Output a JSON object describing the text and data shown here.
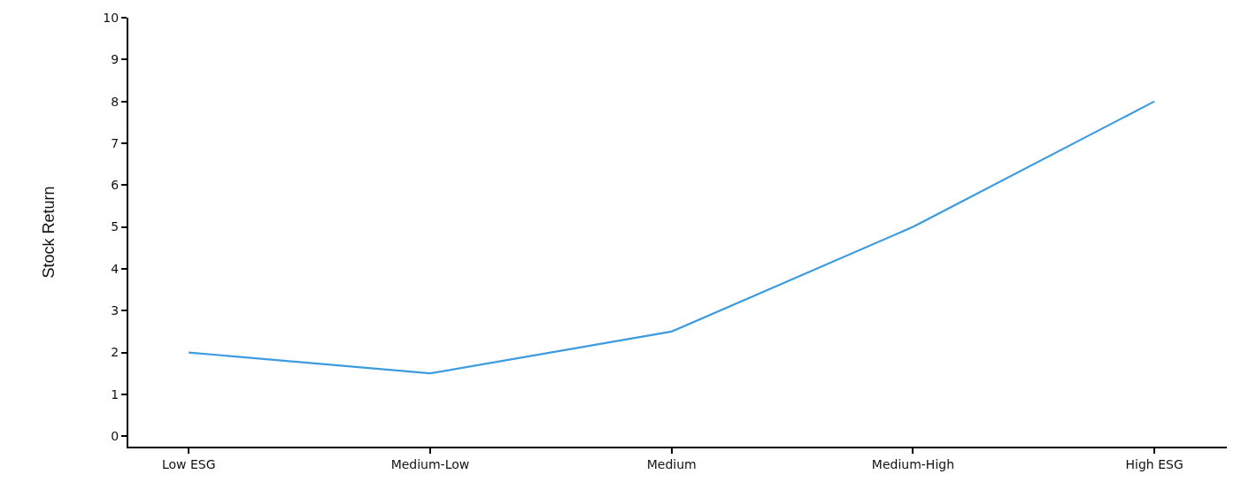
{
  "chart_data": {
    "type": "line",
    "ylabel": "Stock Return",
    "categories": [
      "Low ESG",
      "Medium-Low",
      "Medium",
      "Medium-High",
      "High ESG"
    ],
    "series": [
      {
        "color": "#3d9be0",
        "values": [
          2,
          1.5,
          2.5,
          5,
          8
        ]
      }
    ],
    "ylim": [
      -0.25,
      10
    ],
    "yticks": [
      0,
      1,
      2,
      3,
      4,
      5,
      6,
      7,
      8,
      9,
      10
    ],
    "marker": "none",
    "line_style": "solid"
  }
}
